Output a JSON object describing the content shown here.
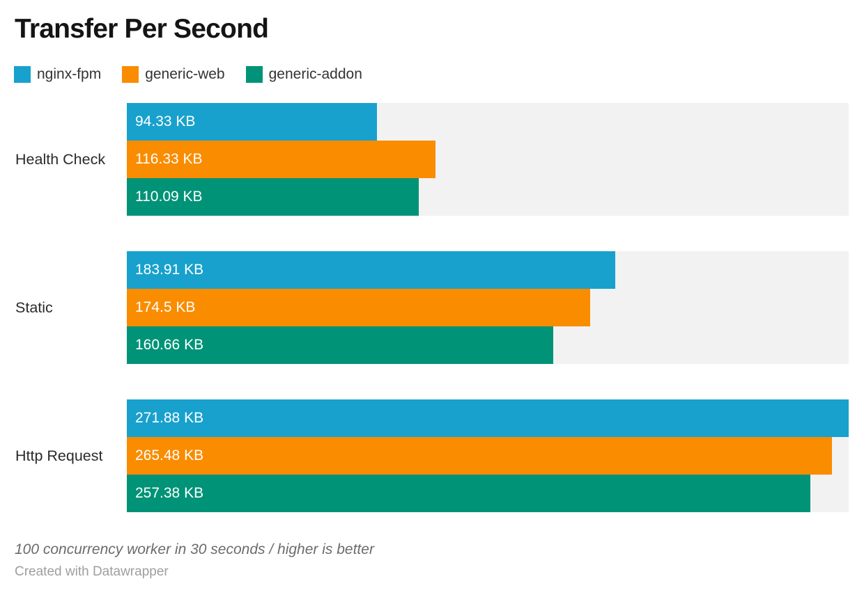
{
  "title": "Transfer Per Second",
  "legend": {
    "items": [
      {
        "label": "nginx-fpm",
        "color": "#18a1cd"
      },
      {
        "label": "generic-web",
        "color": "#fa8c00"
      },
      {
        "label": "generic-addon",
        "color": "#009377"
      }
    ]
  },
  "chart_data": {
    "type": "bar",
    "orientation": "horizontal",
    "title": "Transfer Per Second",
    "unit": "KB",
    "xmax": 271.88,
    "track_color": "#f2f2f2",
    "grid": false,
    "legend_position": "top-left",
    "categories": [
      "Health Check",
      "Static",
      "Http Request"
    ],
    "series": [
      {
        "name": "nginx-fpm",
        "color": "#18a1cd",
        "values": [
          94.33,
          183.91,
          271.88
        ],
        "labels": [
          "94.33 KB",
          "183.91 KB",
          "271.88 KB"
        ]
      },
      {
        "name": "generic-web",
        "color": "#fa8c00",
        "values": [
          116.33,
          174.5,
          265.48
        ],
        "labels": [
          "116.33 KB",
          "174.5 KB",
          "265.48 KB"
        ]
      },
      {
        "name": "generic-addon",
        "color": "#009377",
        "values": [
          110.09,
          160.66,
          257.38
        ],
        "labels": [
          "110.09 KB",
          "160.66 KB",
          "257.38 KB"
        ]
      }
    ]
  },
  "footer": {
    "note": "100 concurrency worker in 30 seconds / higher is better",
    "credit": "Created with Datawrapper"
  }
}
